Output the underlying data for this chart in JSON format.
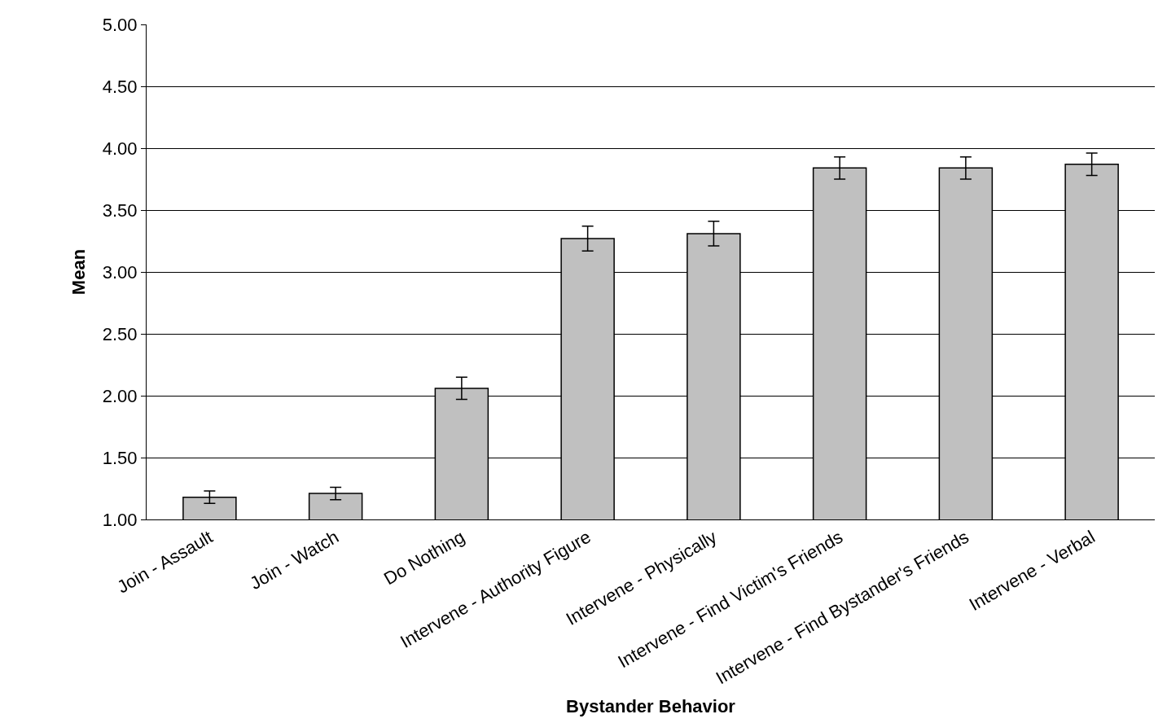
{
  "chart_data": {
    "type": "bar",
    "xlabel": "Bystander Behavior",
    "ylabel": "Mean",
    "categories": [
      "Join - Assault",
      "Join - Watch",
      "Do Nothing",
      "Intervene - Authority Figure",
      "Intervene - Physically",
      "Intervene - Find Victim's Friends",
      "Intervene - Find Bystander's Friends",
      "Intervene - Verbal"
    ],
    "values": [
      1.18,
      1.21,
      2.06,
      3.27,
      3.31,
      3.84,
      3.84,
      3.87
    ],
    "errors": [
      0.05,
      0.05,
      0.09,
      0.1,
      0.1,
      0.09,
      0.09,
      0.09
    ],
    "color": "#c0c0c0",
    "ylim": [
      1.0,
      5.0
    ],
    "yticks": [
      {
        "value": 1.0,
        "label": "1.00"
      },
      {
        "value": 1.5,
        "label": "1.50"
      },
      {
        "value": 2.0,
        "label": "2.00"
      },
      {
        "value": 2.5,
        "label": "2.50"
      },
      {
        "value": 3.0,
        "label": "3.00"
      },
      {
        "value": 3.5,
        "label": "3.50"
      },
      {
        "value": 4.0,
        "label": "4.00"
      },
      {
        "value": 4.5,
        "label": "4.50"
      },
      {
        "value": 5.0,
        "label": "5.00"
      }
    ],
    "grid": "y",
    "legend": false
  }
}
